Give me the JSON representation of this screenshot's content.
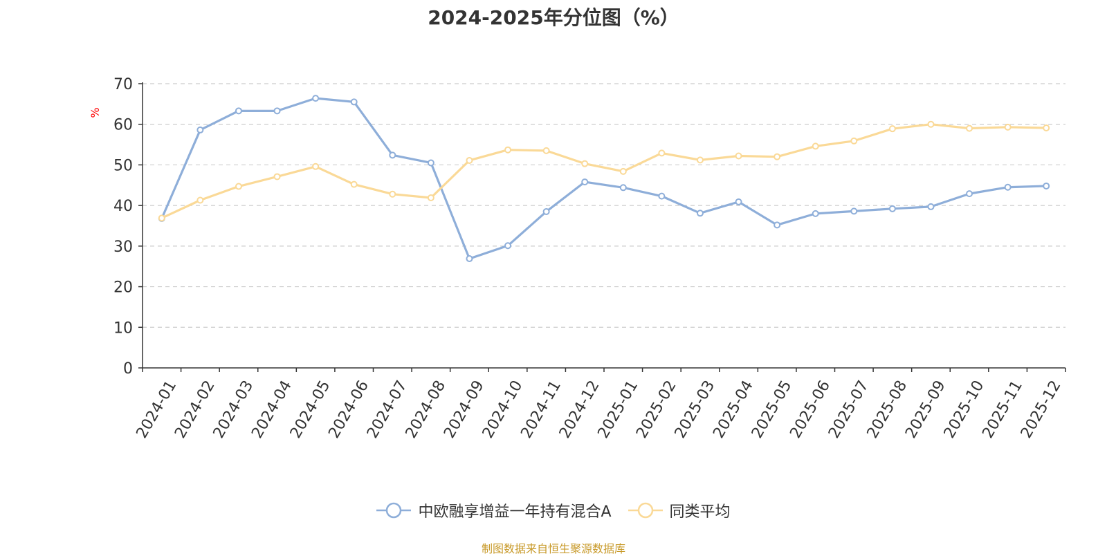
{
  "chart_data": {
    "type": "line",
    "title": "2024-2025年分位图（%）",
    "ylabel": "%",
    "ylim": [
      0,
      70
    ],
    "yticks": [
      0,
      10,
      20,
      30,
      40,
      50,
      60,
      70
    ],
    "grid": true,
    "legend_position": "bottom",
    "categories": [
      "2024-01",
      "2024-02",
      "2024-03",
      "2024-04",
      "2024-05",
      "2024-06",
      "2024-07",
      "2024-08",
      "2024-09",
      "2024-10",
      "2024-11",
      "2024-12",
      "2025-01",
      "2025-02",
      "2025-03",
      "2025-04",
      "2025-05",
      "2025-06",
      "2025-07",
      "2025-08",
      "2025-09",
      "2025-10",
      "2025-11",
      "2025-12"
    ],
    "series": [
      {
        "name": "中欧融享增益一年持有混合A",
        "color": "#8eaed9",
        "values": [
          36.8,
          58.6,
          63.3,
          63.3,
          66.4,
          65.5,
          52.4,
          50.5,
          26.9,
          30.1,
          38.5,
          45.8,
          44.4,
          42.3,
          38.1,
          40.9,
          35.2,
          38.0,
          38.6,
          39.2,
          39.7,
          42.9,
          44.5,
          44.8
        ]
      },
      {
        "name": "同类平均",
        "color": "#fad997",
        "values": [
          36.9,
          41.3,
          44.7,
          47.1,
          49.6,
          45.2,
          42.8,
          41.9,
          51.1,
          53.7,
          53.5,
          50.3,
          48.4,
          52.9,
          51.2,
          52.2,
          52.0,
          54.6,
          55.9,
          58.9,
          60.0,
          59.0,
          59.3,
          59.1
        ]
      }
    ]
  },
  "source_note": "制图数据来自恒生聚源数据库",
  "colors": {
    "source_note": "#c89a2a",
    "ylabel": "#ff0000",
    "axis": "#333333",
    "grid": "#cccccc"
  }
}
